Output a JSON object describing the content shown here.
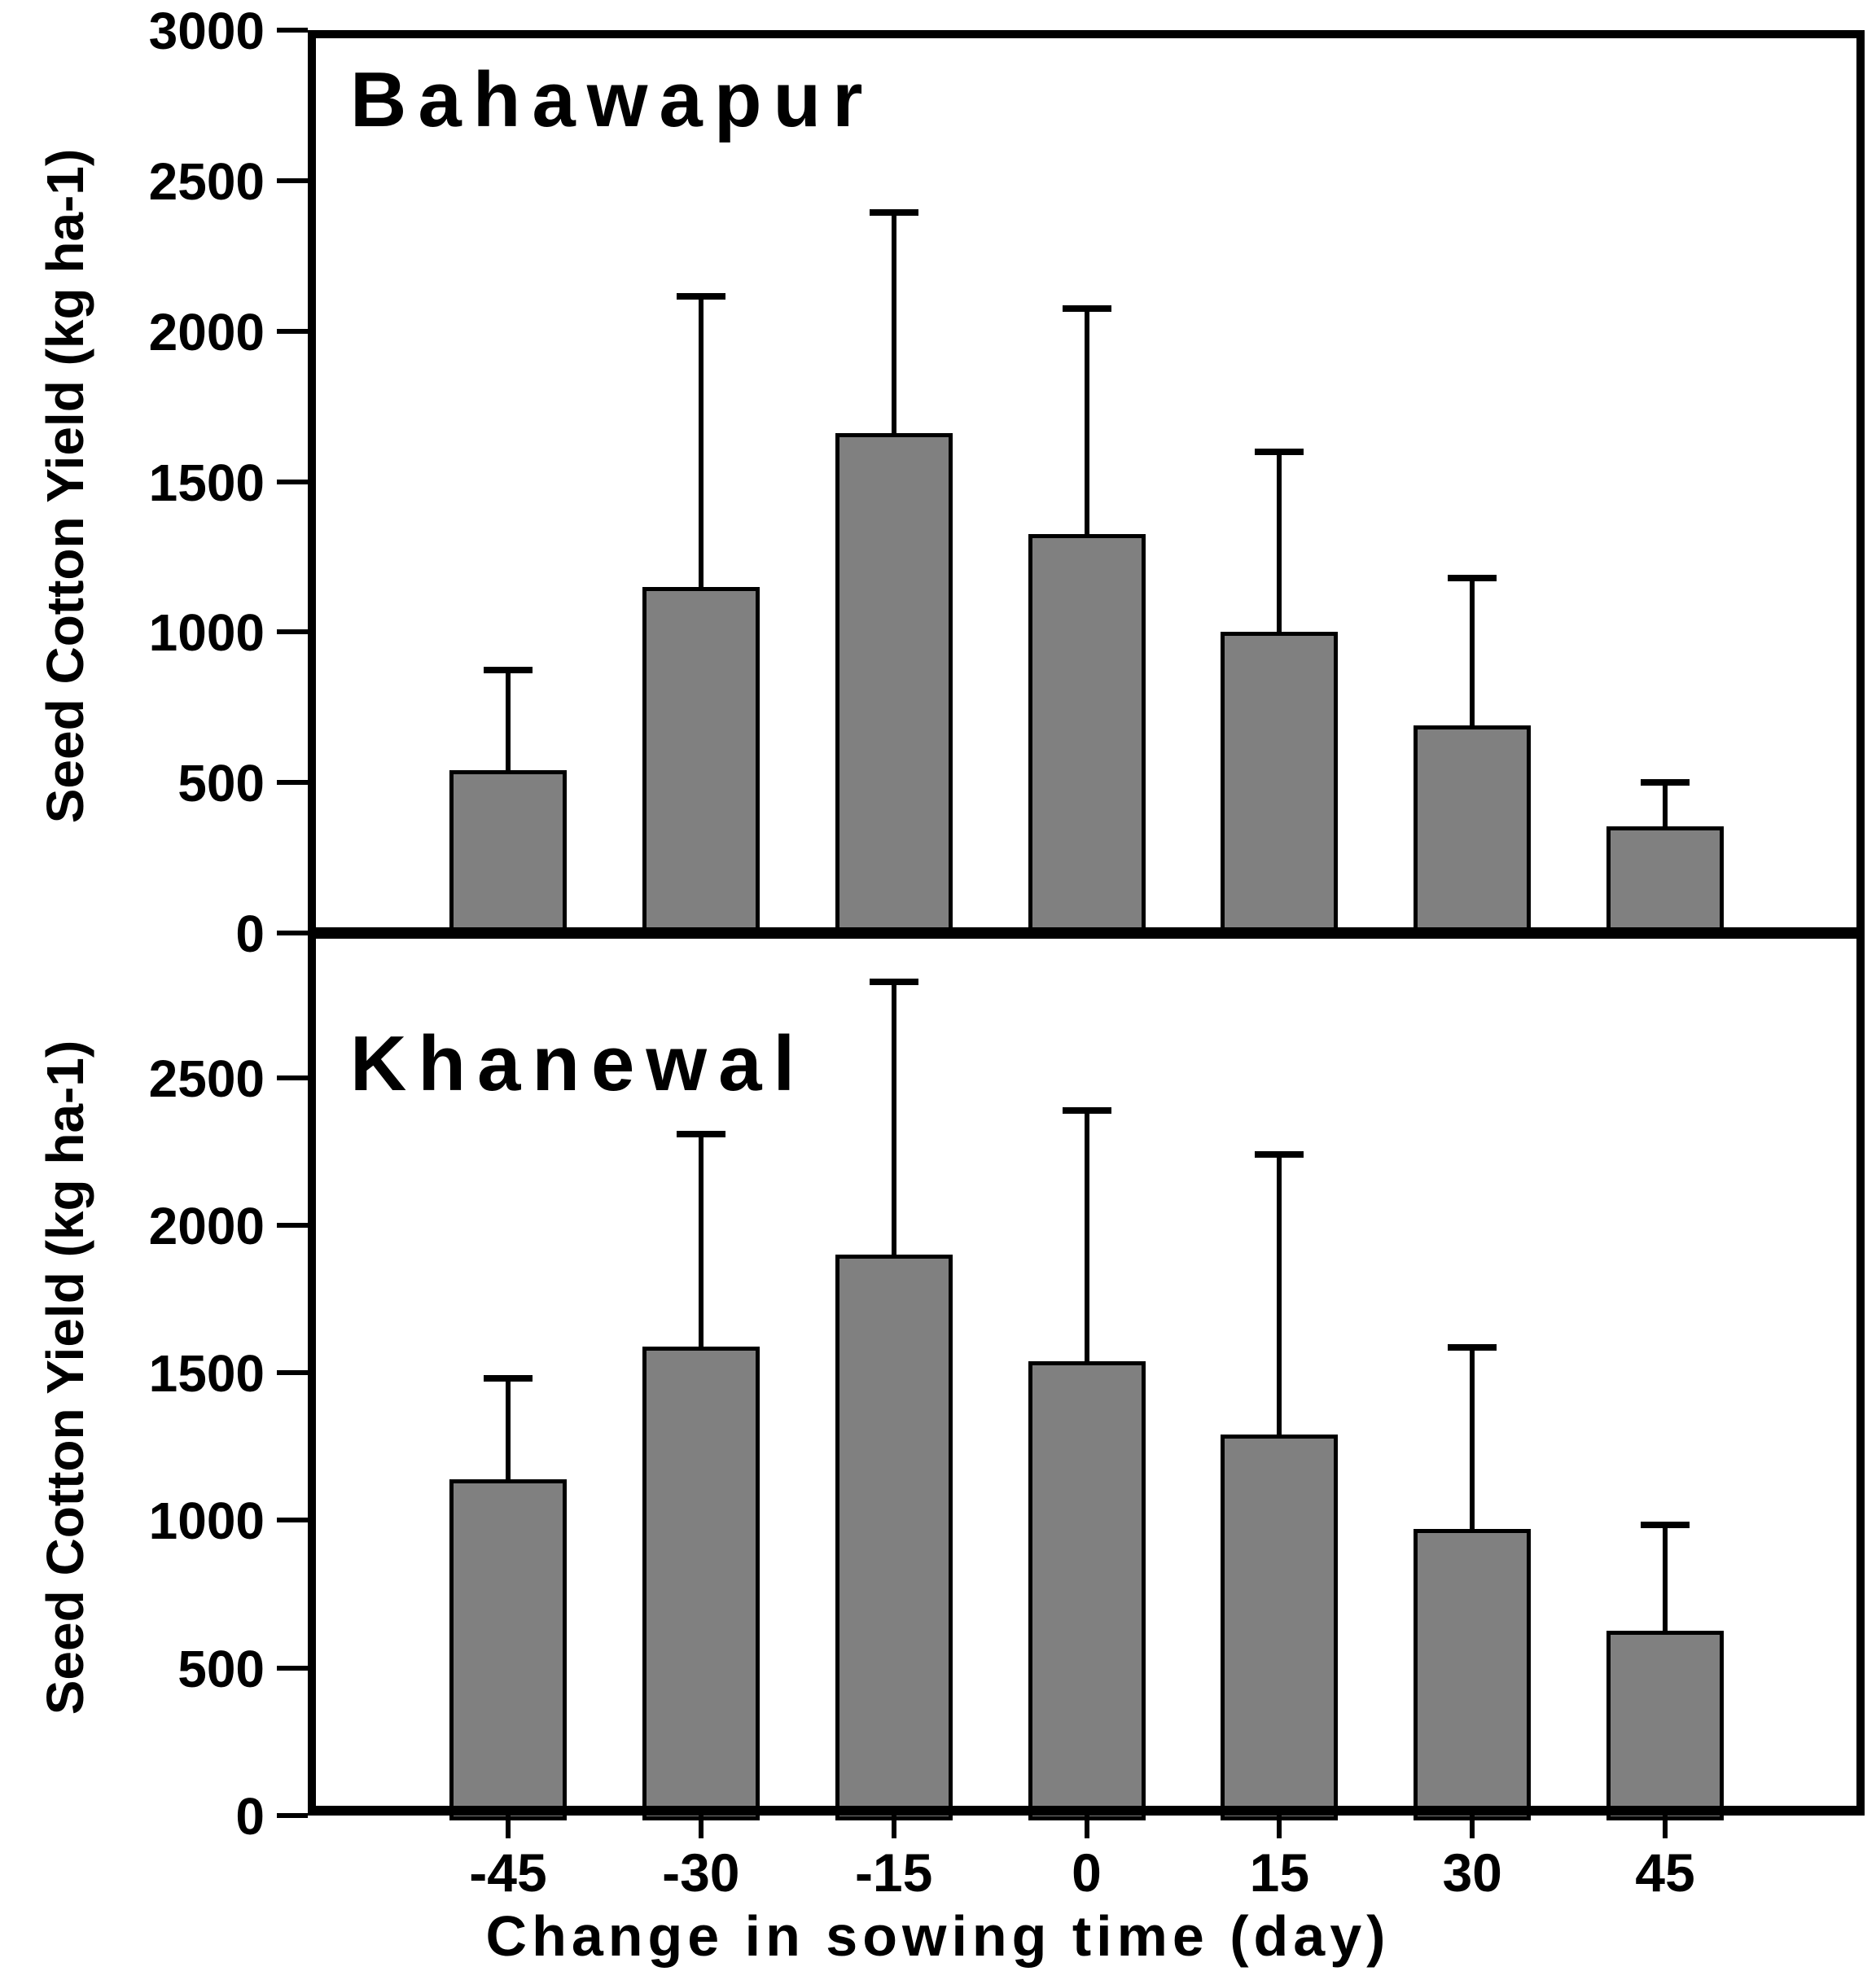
{
  "figure": {
    "xlabel": "Change in sowing time (day)",
    "ylabel": "Seed Cotton Yield (kg ha-1)"
  },
  "colors": {
    "bar_fill": "#808080",
    "axis_and_text": "#000000",
    "background": "#ffffff"
  },
  "chart_data": [
    {
      "type": "bar",
      "panel": "top",
      "title": "Bahawapur",
      "ylabel": "Seed Cotton Yield (kg ha-1)",
      "categories": [
        "-45",
        "-30",
        "-15",
        "0",
        "15",
        "30",
        "45"
      ],
      "values": [
        540,
        1150,
        1660,
        1325,
        1000,
        690,
        355
      ],
      "errors_upper": [
        335,
        965,
        735,
        750,
        600,
        490,
        145
      ],
      "ylim": [
        0,
        3000
      ],
      "yticks": [
        0,
        500,
        1000,
        1500,
        2000,
        2500,
        3000
      ],
      "grid": false,
      "legend": "none"
    },
    {
      "type": "bar",
      "panel": "bottom",
      "title": "Khanewal",
      "ylabel": "Seed Cotton Yield (kg ha-1)",
      "xlabel": "Change in sowing time (day)",
      "categories": [
        "-45",
        "-30",
        "-15",
        "0",
        "15",
        "30",
        "45"
      ],
      "values": [
        1140,
        1590,
        1900,
        1540,
        1290,
        970,
        625
      ],
      "errors_upper": [
        340,
        720,
        925,
        850,
        950,
        615,
        360
      ],
      "ylim": [
        0,
        2990
      ],
      "yticks": [
        0,
        500,
        1000,
        1500,
        2000,
        2500
      ],
      "grid": false,
      "legend": "none"
    }
  ]
}
